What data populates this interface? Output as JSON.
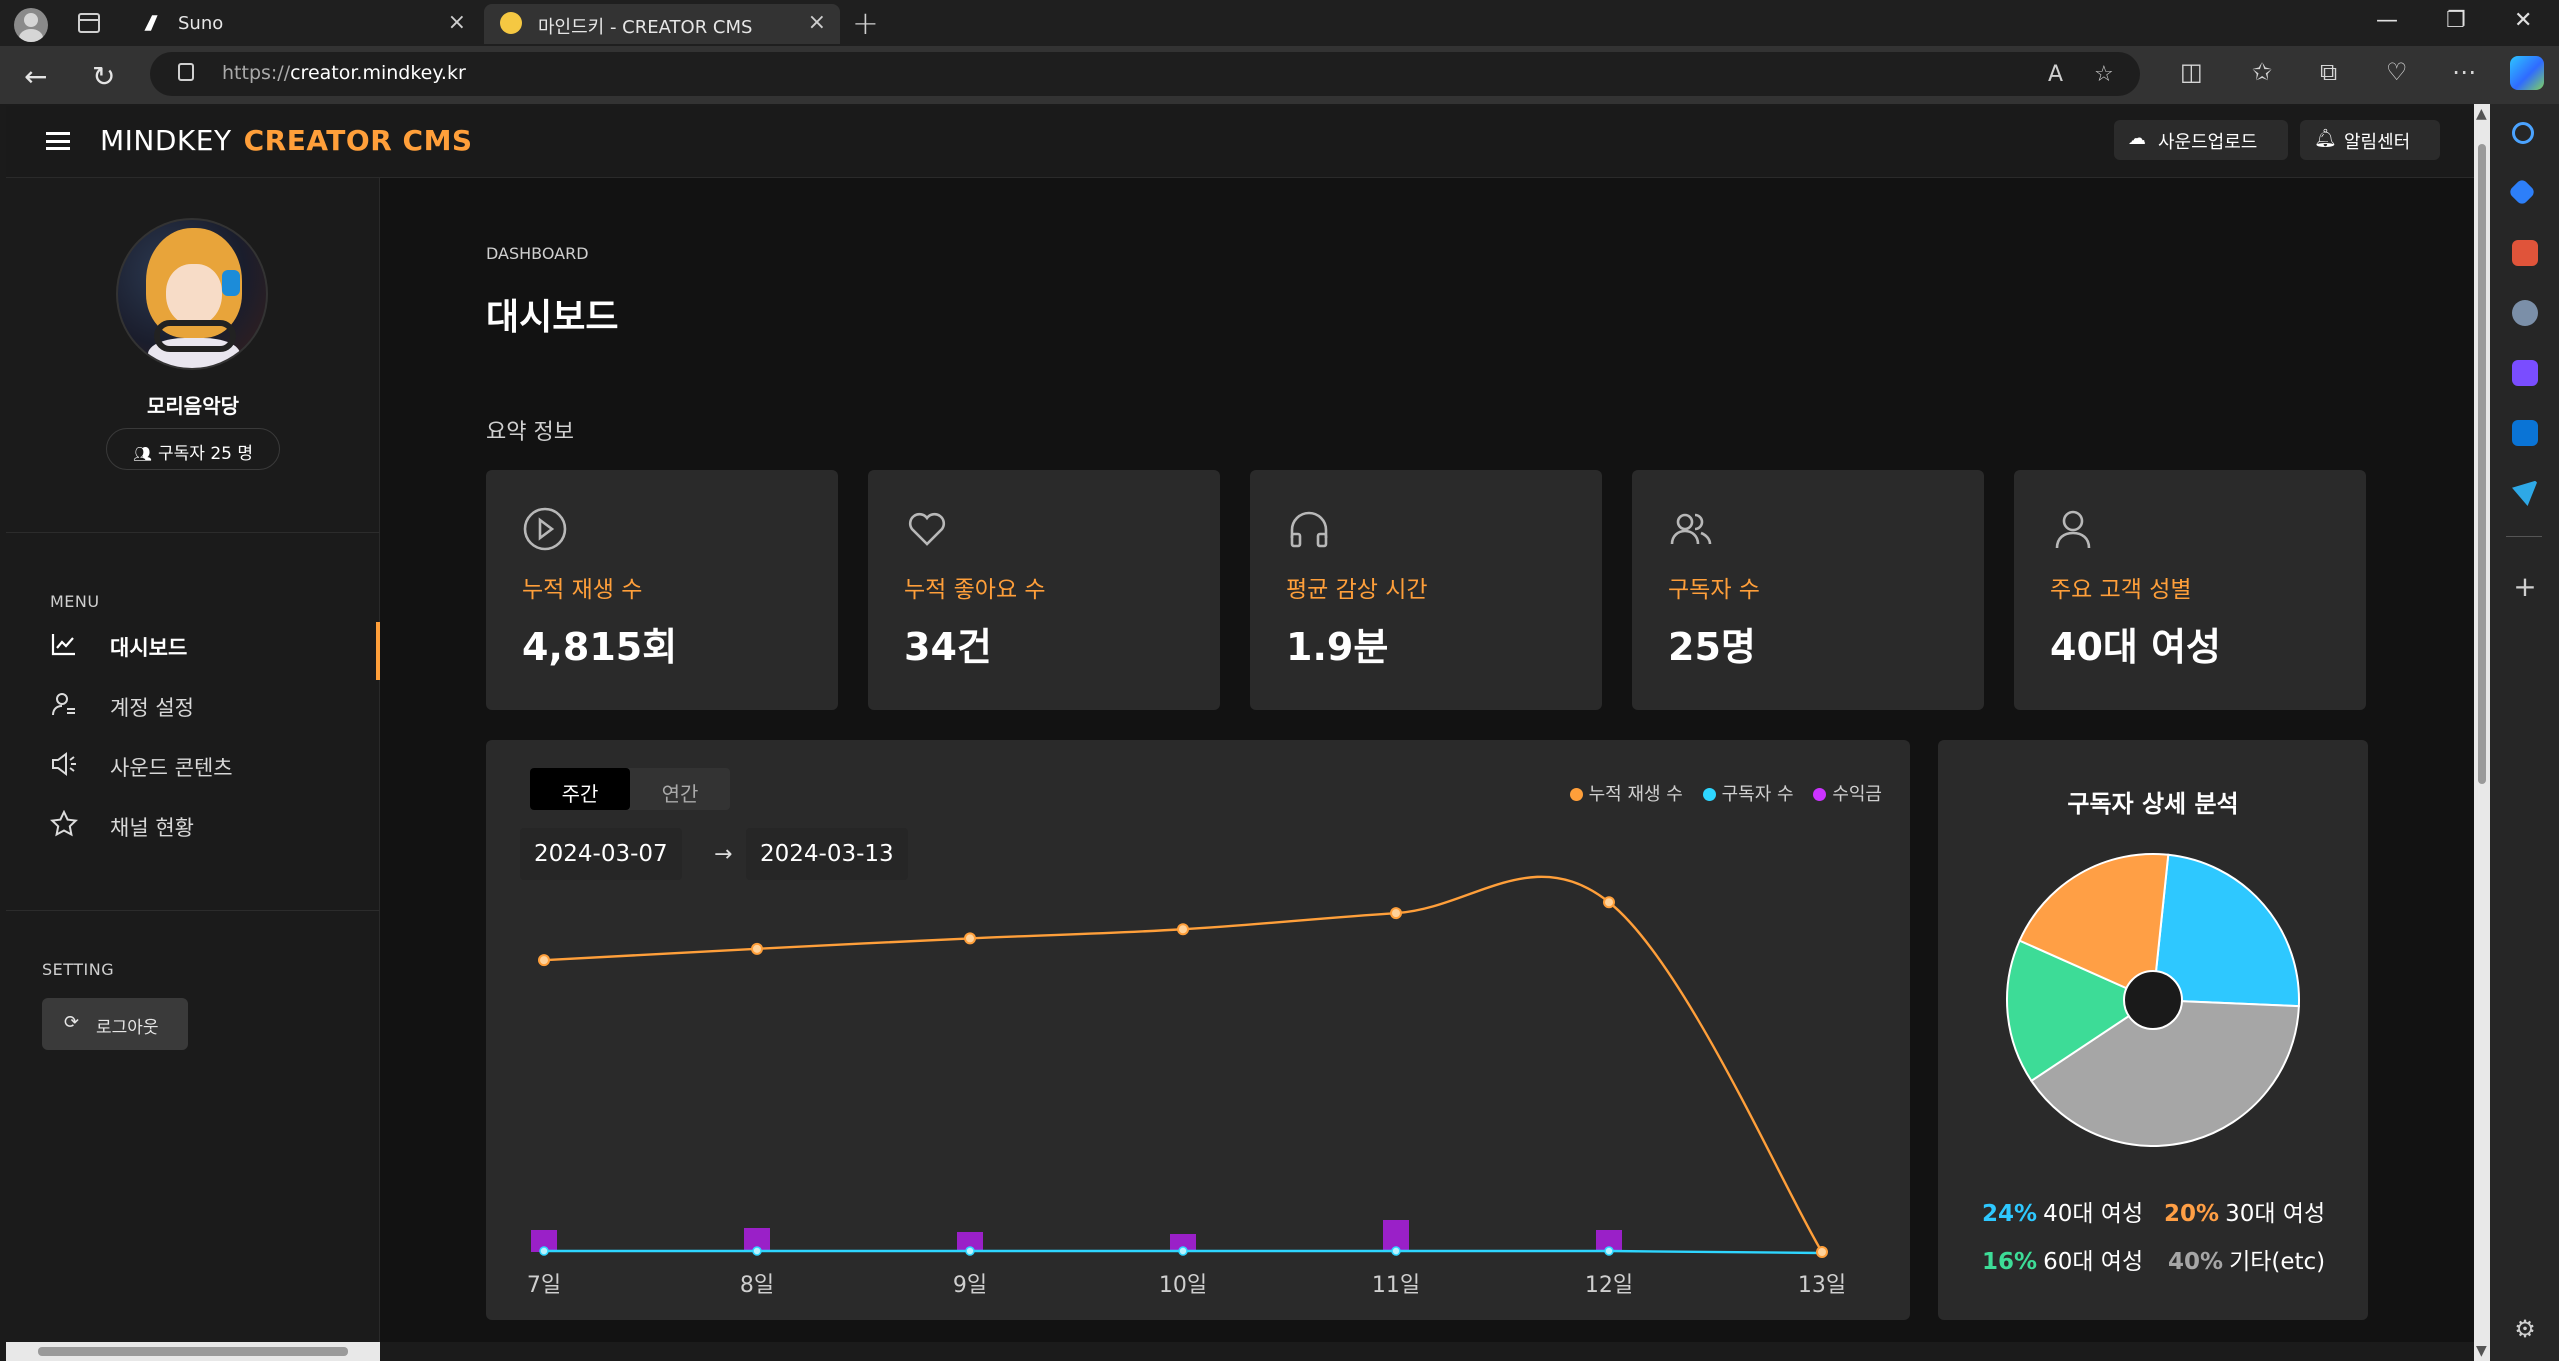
{
  "browser": {
    "tabs": [
      {
        "title": "Suno",
        "icon": "suno-icon"
      },
      {
        "title": "마인드키 - CREATOR CMS",
        "icon": "mindkey-icon"
      }
    ],
    "url_prefix": "https://",
    "url_host": "creator.mindkey.kr"
  },
  "header": {
    "brand_1": "MINDKEY",
    "brand_2": "CREATOR CMS",
    "upload_label": "사운드업로드",
    "alarm_label": "알림센터"
  },
  "sidebar": {
    "username": "모리음악당",
    "subscribers": "구독자 25 명",
    "menu_label": "MENU",
    "items": [
      {
        "label": "대시보드",
        "icon": "chart-line-icon",
        "active": true
      },
      {
        "label": "계정 설정",
        "icon": "user-settings-icon"
      },
      {
        "label": "사운드 콘텐츠",
        "icon": "speaker-icon"
      },
      {
        "label": "채널 현황",
        "icon": "star-icon"
      }
    ],
    "setting_label": "SETTING",
    "logout_label": "로그아웃"
  },
  "main": {
    "breadcrumb": "DASHBOARD",
    "title": "대시보드",
    "summary_title": "요약 정보",
    "cards": [
      {
        "label": "누적 재생 수",
        "value": "4,815회",
        "icon": "play-circle-icon"
      },
      {
        "label": "누적 좋아요 수",
        "value": "34건",
        "icon": "heart-icon"
      },
      {
        "label": "평균 감상 시간",
        "value": "1.9분",
        "icon": "headphones-icon"
      },
      {
        "label": "구독자 수",
        "value": "25명",
        "icon": "users-icon"
      },
      {
        "label": "주요 고객 성별",
        "value": "40대 여성",
        "icon": "user-icon"
      }
    ],
    "chart": {
      "tab_weekly": "주간",
      "tab_yearly": "연간",
      "date_from": "2024-03-07",
      "date_arrow": "→",
      "date_to": "2024-03-13",
      "legend": [
        "누적 재생 수",
        "구독자 수",
        "수익금"
      ]
    },
    "pie": {
      "title": "구독자 상세 분석",
      "items": [
        {
          "pct": "24%",
          "label": "40대 여성",
          "color": "#2ec8ff"
        },
        {
          "pct": "20%",
          "label": "30대 여성",
          "color": "#ff9f45"
        },
        {
          "pct": "16%",
          "label": "60대 여성",
          "color": "#3ddc97"
        },
        {
          "pct": "40%",
          "label": "기타(etc)",
          "color": "#a6a6a6"
        }
      ]
    }
  },
  "colors": {
    "accent": "#ff9f3a",
    "plays": "#ff9f3a",
    "subscribers": "#2ed6ff",
    "revenue": "#cc33ff"
  },
  "chart_data": {
    "type": "line",
    "categories": [
      "7일",
      "8일",
      "9일",
      "10일",
      "11일",
      "12일",
      "13일"
    ],
    "series": [
      {
        "name": "누적 재생 수",
        "type": "line",
        "values": [
          670,
          696,
          720,
          741,
          778,
          803,
          0
        ]
      },
      {
        "name": "구독자 수",
        "type": "line",
        "values": [
          25,
          25,
          25,
          25,
          25,
          25,
          0
        ]
      },
      {
        "name": "수익금",
        "type": "bar",
        "values": [
          22,
          24,
          20,
          18,
          32,
          22,
          0
        ]
      }
    ],
    "xlabel": "",
    "ylabel": "",
    "grid": false,
    "legend": "top-right"
  },
  "pie_chart_data": {
    "type": "pie",
    "labels": [
      "40대 여성",
      "30대 여성",
      "60대 여성",
      "기타(etc)"
    ],
    "values": [
      24,
      20,
      16,
      40
    ],
    "title": "구독자 상세 분석"
  }
}
